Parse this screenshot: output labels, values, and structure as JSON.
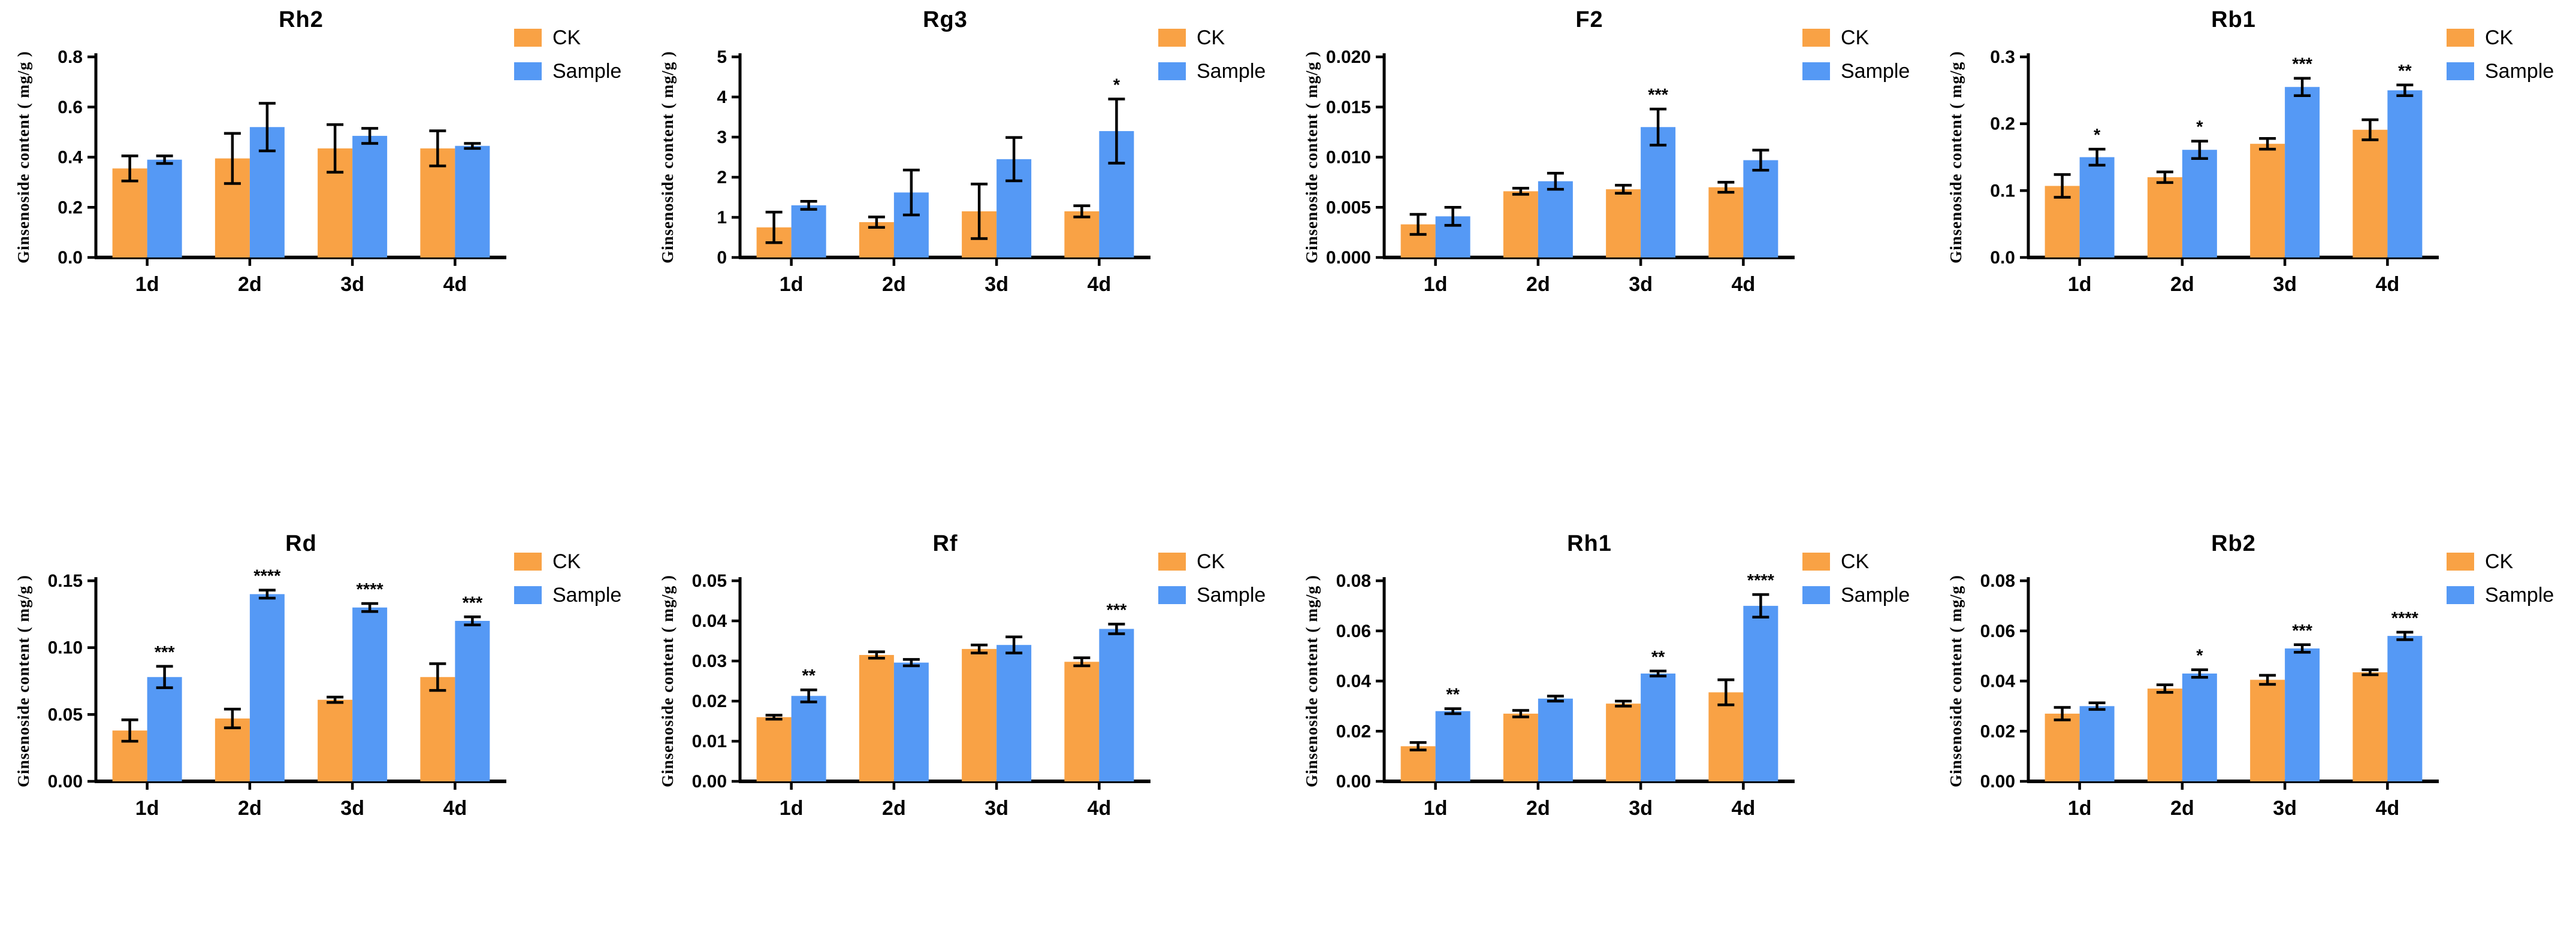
{
  "page": {
    "background": "#ffffff"
  },
  "legend": {
    "items": [
      {
        "label": "CK",
        "color": "#F9A245"
      },
      {
        "label": "Sample",
        "color": "#5599F5"
      }
    ]
  },
  "chart_data": [
    {
      "type": "bar",
      "title": "Rh2",
      "ylabel": "Ginsenoside content ( mg/g )",
      "categories": [
        "1d",
        "2d",
        "3d",
        "4d"
      ],
      "ylim": [
        0,
        0.8
      ],
      "ystep": 0.2,
      "ydecimals": 1,
      "grid": false,
      "legend_position": "top-right",
      "series": [
        {
          "name": "CK",
          "values": [
            0.355,
            0.395,
            0.435,
            0.435
          ],
          "errors": [
            0.05,
            0.1,
            0.095,
            0.07
          ]
        },
        {
          "name": "Sample",
          "values": [
            0.39,
            0.52,
            0.485,
            0.445
          ],
          "errors": [
            0.015,
            0.095,
            0.03,
            0.01
          ]
        }
      ],
      "significance": [
        "",
        "",
        "",
        ""
      ]
    },
    {
      "type": "bar",
      "title": "Rg3",
      "ylabel": "Ginsenoside content ( mg/g )",
      "categories": [
        "1d",
        "2d",
        "3d",
        "4d"
      ],
      "ylim": [
        0,
        5
      ],
      "ystep": 1,
      "ydecimals": 0,
      "grid": false,
      "legend_position": "top-right",
      "series": [
        {
          "name": "CK",
          "values": [
            0.75,
            0.88,
            1.15,
            1.15
          ],
          "errors": [
            0.38,
            0.13,
            0.68,
            0.14
          ]
        },
        {
          "name": "Sample",
          "values": [
            1.3,
            1.62,
            2.45,
            3.15
          ],
          "errors": [
            0.1,
            0.56,
            0.54,
            0.8
          ]
        }
      ],
      "significance": [
        "",
        "",
        "",
        "*"
      ]
    },
    {
      "type": "bar",
      "title": "F2",
      "ylabel": "Ginsenoside content ( mg/g )",
      "categories": [
        "1d",
        "2d",
        "3d",
        "4d"
      ],
      "ylim": [
        0,
        0.02
      ],
      "ystep": 0.005,
      "ydecimals": 3,
      "grid": false,
      "legend_position": "top-right",
      "series": [
        {
          "name": "CK",
          "values": [
            0.0033,
            0.0066,
            0.0068,
            0.007
          ],
          "errors": [
            0.001,
            0.0003,
            0.0004,
            0.0005
          ]
        },
        {
          "name": "Sample",
          "values": [
            0.0041,
            0.0076,
            0.013,
            0.0097
          ],
          "errors": [
            0.0009,
            0.0008,
            0.0018,
            0.001
          ]
        }
      ],
      "significance": [
        "",
        "",
        "***",
        ""
      ]
    },
    {
      "type": "bar",
      "title": "Rb1",
      "ylabel": "Ginsenoside content ( mg/g )",
      "categories": [
        "1d",
        "2d",
        "3d",
        "4d"
      ],
      "ylim": [
        0,
        0.3
      ],
      "ystep": 0.1,
      "ydecimals": 1,
      "grid": false,
      "legend_position": "top-right",
      "series": [
        {
          "name": "CK",
          "values": [
            0.107,
            0.12,
            0.17,
            0.191
          ],
          "errors": [
            0.017,
            0.008,
            0.008,
            0.015
          ]
        },
        {
          "name": "Sample",
          "values": [
            0.15,
            0.161,
            0.255,
            0.25
          ],
          "errors": [
            0.012,
            0.013,
            0.013,
            0.008
          ]
        }
      ],
      "significance": [
        "*",
        "*",
        "***",
        "**"
      ]
    },
    {
      "type": "bar",
      "title": "Rd",
      "ylabel": "Ginsenoside content ( mg/g )",
      "categories": [
        "1d",
        "2d",
        "3d",
        "4d"
      ],
      "ylim": [
        0,
        0.15
      ],
      "ystep": 0.05,
      "ydecimals": 2,
      "grid": false,
      "legend_position": "top-right",
      "series": [
        {
          "name": "CK",
          "values": [
            0.038,
            0.047,
            0.061,
            0.078
          ],
          "errors": [
            0.008,
            0.007,
            0.002,
            0.01
          ]
        },
        {
          "name": "Sample",
          "values": [
            0.078,
            0.14,
            0.13,
            0.12
          ],
          "errors": [
            0.008,
            0.003,
            0.003,
            0.003
          ]
        }
      ],
      "significance": [
        "***",
        "****",
        "****",
        "***"
      ]
    },
    {
      "type": "bar",
      "title": "Rf",
      "ylabel": "Ginsenoside content ( mg/g )",
      "categories": [
        "1d",
        "2d",
        "3d",
        "4d"
      ],
      "ylim": [
        0,
        0.05
      ],
      "ystep": 0.01,
      "ydecimals": 2,
      "grid": false,
      "legend_position": "top-right",
      "series": [
        {
          "name": "CK",
          "values": [
            0.016,
            0.0315,
            0.033,
            0.0298
          ],
          "errors": [
            0.0005,
            0.0008,
            0.001,
            0.001
          ]
        },
        {
          "name": "Sample",
          "values": [
            0.0213,
            0.0296,
            0.034,
            0.038
          ],
          "errors": [
            0.0015,
            0.0008,
            0.002,
            0.0012
          ]
        }
      ],
      "significance": [
        "**",
        "",
        "",
        "***"
      ]
    },
    {
      "type": "bar",
      "title": "Rh1",
      "ylabel": "Ginsenoside content ( mg/g )",
      "categories": [
        "1d",
        "2d",
        "3d",
        "4d"
      ],
      "ylim": [
        0,
        0.08
      ],
      "ystep": 0.02,
      "ydecimals": 2,
      "grid": false,
      "legend_position": "top-right",
      "series": [
        {
          "name": "CK",
          "values": [
            0.014,
            0.027,
            0.031,
            0.0355
          ],
          "errors": [
            0.0015,
            0.0013,
            0.001,
            0.005
          ]
        },
        {
          "name": "Sample",
          "values": [
            0.028,
            0.033,
            0.043,
            0.07
          ],
          "errors": [
            0.001,
            0.001,
            0.001,
            0.0045
          ]
        }
      ],
      "significance": [
        "**",
        "",
        "**",
        "****"
      ]
    },
    {
      "type": "bar",
      "title": "Rb2",
      "ylabel": "Ginsenoside content ( mg/g )",
      "categories": [
        "1d",
        "2d",
        "3d",
        "4d"
      ],
      "ylim": [
        0,
        0.08
      ],
      "ystep": 0.02,
      "ydecimals": 2,
      "grid": false,
      "legend_position": "top-right",
      "series": [
        {
          "name": "CK",
          "values": [
            0.027,
            0.037,
            0.0405,
            0.0435
          ],
          "errors": [
            0.0025,
            0.0015,
            0.0018,
            0.001
          ]
        },
        {
          "name": "Sample",
          "values": [
            0.03,
            0.043,
            0.053,
            0.058
          ],
          "errors": [
            0.0013,
            0.0015,
            0.0015,
            0.0015
          ]
        }
      ],
      "significance": [
        "",
        "*",
        "***",
        "****"
      ]
    }
  ]
}
